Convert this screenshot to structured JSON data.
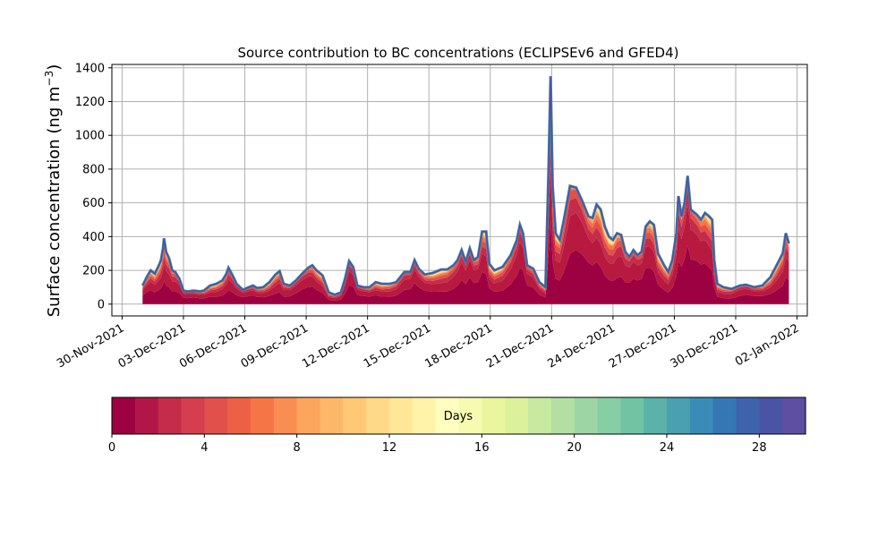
{
  "chart_data": {
    "type": "area",
    "title": "Source contribution to BC concentrations (ECLIPSEv6 and GFED4)",
    "ylabel": "Surface concentration (ng m",
    "ylabel_sup": "−3",
    "ylabel_close": ")",
    "xlabel": "",
    "ylim": [
      -70,
      1420
    ],
    "yticks": [
      0,
      200,
      400,
      600,
      800,
      1000,
      1200,
      1400
    ],
    "xlim_days": [
      -0.5,
      33.5
    ],
    "xticks": [
      {
        "label": "30-Nov-2021",
        "day": 0
      },
      {
        "label": "03-Dec-2021",
        "day": 3
      },
      {
        "label": "06-Dec-2021",
        "day": 6
      },
      {
        "label": "09-Dec-2021",
        "day": 9
      },
      {
        "label": "12-Dec-2021",
        "day": 12
      },
      {
        "label": "15-Dec-2021",
        "day": 15
      },
      {
        "label": "18-Dec-2021",
        "day": 18
      },
      {
        "label": "21-Dec-2021",
        "day": 21
      },
      {
        "label": "24-Dec-2021",
        "day": 24
      },
      {
        "label": "27-Dec-2021",
        "day": 27
      },
      {
        "label": "30-Dec-2021",
        "day": 30
      },
      {
        "label": "02-Jan-2022",
        "day": 33
      }
    ],
    "grid": true,
    "total_series": [
      [
        1.0,
        110
      ],
      [
        1.25,
        170
      ],
      [
        1.4,
        200
      ],
      [
        1.6,
        180
      ],
      [
        1.8,
        230
      ],
      [
        1.9,
        260
      ],
      [
        2.0,
        330
      ],
      [
        2.05,
        390
      ],
      [
        2.15,
        310
      ],
      [
        2.3,
        270
      ],
      [
        2.45,
        200
      ],
      [
        2.6,
        190
      ],
      [
        2.8,
        150
      ],
      [
        3.0,
        80
      ],
      [
        3.2,
        75
      ],
      [
        3.5,
        80
      ],
      [
        3.8,
        75
      ],
      [
        4.0,
        80
      ],
      [
        4.3,
        110
      ],
      [
        4.6,
        120
      ],
      [
        4.9,
        140
      ],
      [
        5.1,
        180
      ],
      [
        5.2,
        215
      ],
      [
        5.4,
        170
      ],
      [
        5.6,
        120
      ],
      [
        5.9,
        85
      ],
      [
        6.2,
        100
      ],
      [
        6.4,
        110
      ],
      [
        6.6,
        95
      ],
      [
        6.9,
        100
      ],
      [
        7.2,
        130
      ],
      [
        7.5,
        175
      ],
      [
        7.7,
        195
      ],
      [
        7.9,
        120
      ],
      [
        8.2,
        110
      ],
      [
        8.5,
        140
      ],
      [
        8.8,
        180
      ],
      [
        9.1,
        215
      ],
      [
        9.3,
        230
      ],
      [
        9.5,
        200
      ],
      [
        9.8,
        170
      ],
      [
        10.1,
        70
      ],
      [
        10.4,
        55
      ],
      [
        10.7,
        70
      ],
      [
        10.9,
        150
      ],
      [
        11.1,
        255
      ],
      [
        11.3,
        220
      ],
      [
        11.5,
        110
      ],
      [
        11.8,
        100
      ],
      [
        12.1,
        100
      ],
      [
        12.4,
        130
      ],
      [
        12.7,
        120
      ],
      [
        13.1,
        120
      ],
      [
        13.4,
        130
      ],
      [
        13.8,
        190
      ],
      [
        14.1,
        190
      ],
      [
        14.3,
        260
      ],
      [
        14.5,
        210
      ],
      [
        14.8,
        175
      ],
      [
        15.2,
        185
      ],
      [
        15.6,
        205
      ],
      [
        15.9,
        205
      ],
      [
        16.2,
        230
      ],
      [
        16.4,
        260
      ],
      [
        16.6,
        320
      ],
      [
        16.8,
        250
      ],
      [
        17.0,
        330
      ],
      [
        17.2,
        260
      ],
      [
        17.4,
        280
      ],
      [
        17.6,
        430
      ],
      [
        17.8,
        430
      ],
      [
        17.95,
        240
      ],
      [
        18.2,
        200
      ],
      [
        18.6,
        220
      ],
      [
        19.0,
        290
      ],
      [
        19.3,
        380
      ],
      [
        19.45,
        470
      ],
      [
        19.6,
        420
      ],
      [
        19.8,
        230
      ],
      [
        20.1,
        210
      ],
      [
        20.4,
        130
      ],
      [
        20.7,
        100
      ],
      [
        20.85,
        800
      ],
      [
        20.95,
        1350
      ],
      [
        21.05,
        700
      ],
      [
        21.2,
        420
      ],
      [
        21.4,
        380
      ],
      [
        21.6,
        500
      ],
      [
        21.9,
        700
      ],
      [
        22.2,
        690
      ],
      [
        22.5,
        610
      ],
      [
        22.8,
        520
      ],
      [
        23.0,
        510
      ],
      [
        23.2,
        590
      ],
      [
        23.4,
        560
      ],
      [
        23.6,
        460
      ],
      [
        23.8,
        400
      ],
      [
        24.0,
        380
      ],
      [
        24.2,
        420
      ],
      [
        24.4,
        410
      ],
      [
        24.6,
        310
      ],
      [
        24.8,
        280
      ],
      [
        25.0,
        320
      ],
      [
        25.2,
        290
      ],
      [
        25.4,
        310
      ],
      [
        25.6,
        460
      ],
      [
        25.8,
        490
      ],
      [
        26.0,
        470
      ],
      [
        26.2,
        300
      ],
      [
        26.5,
        230
      ],
      [
        26.7,
        190
      ],
      [
        26.9,
        260
      ],
      [
        27.1,
        420
      ],
      [
        27.2,
        640
      ],
      [
        27.35,
        520
      ],
      [
        27.5,
        600
      ],
      [
        27.65,
        760
      ],
      [
        27.8,
        560
      ],
      [
        28.1,
        530
      ],
      [
        28.3,
        500
      ],
      [
        28.5,
        540
      ],
      [
        28.7,
        520
      ],
      [
        28.85,
        500
      ],
      [
        28.95,
        260
      ],
      [
        29.1,
        120
      ],
      [
        29.4,
        100
      ],
      [
        29.8,
        90
      ],
      [
        30.2,
        110
      ],
      [
        30.5,
        115
      ],
      [
        30.9,
        100
      ],
      [
        31.3,
        110
      ],
      [
        31.7,
        160
      ],
      [
        32.0,
        230
      ],
      [
        32.3,
        300
      ],
      [
        32.45,
        420
      ],
      [
        32.6,
        360
      ]
    ],
    "layers": {
      "comment_free": "",
      "fractions": [
        0.42,
        0.28,
        0.12,
        0.08,
        0.05,
        0.03,
        0.02
      ]
    },
    "colorbar": {
      "label": "Days",
      "min": 0,
      "max": 30,
      "ticks": [
        0,
        4,
        8,
        12,
        16,
        20,
        24,
        28
      ],
      "colors": [
        "#9e0142",
        "#b11646",
        "#c42c4a",
        "#d53e4f",
        "#e1504a",
        "#ec6145",
        "#f57547",
        "#f98e52",
        "#fca55d",
        "#fdb768",
        "#fec877",
        "#fed987",
        "#fee797",
        "#fff3aa",
        "#fffebe",
        "#f6fbb2",
        "#eaf69e",
        "#dbf19c",
        "#c8e9a0",
        "#b3e0a2",
        "#9dd6a4",
        "#86cea4",
        "#70c4a4",
        "#5cb1a9",
        "#4a9fb0",
        "#3a8cb6",
        "#3576b5",
        "#3e63ac",
        "#4b53a5",
        "#5e4fa2"
      ]
    }
  }
}
